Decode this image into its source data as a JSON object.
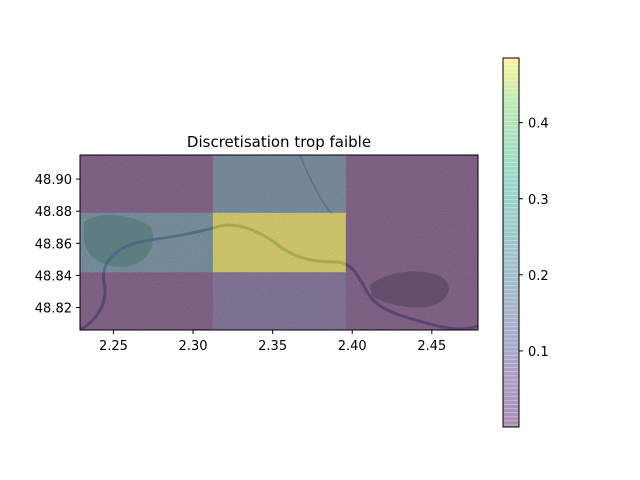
{
  "chart_data": {
    "type": "heatmap",
    "title": "Discretisation trop faible",
    "xlabel": "",
    "ylabel": "",
    "background": "satellite-map",
    "xlim": [
      2.229,
      2.479
    ],
    "ylim": [
      48.806,
      48.915
    ],
    "x_ticks": [
      2.25,
      2.3,
      2.35,
      2.4,
      2.45
    ],
    "x_tick_labels": [
      "2.25",
      "2.30",
      "2.35",
      "2.40",
      "2.45"
    ],
    "y_ticks": [
      48.82,
      48.84,
      48.86,
      48.88,
      48.9
    ],
    "y_tick_labels": [
      "48.82",
      "48.84",
      "48.86",
      "48.88",
      "48.90"
    ],
    "x_edges": [
      2.229,
      2.3125,
      2.396,
      2.479
    ],
    "y_edges": [
      48.806,
      48.842,
      48.879,
      48.915
    ],
    "values": [
      [
        0.02,
        0.08,
        0.02
      ],
      [
        0.19,
        0.48,
        0.02
      ],
      [
        0.02,
        0.17,
        0.02
      ]
    ],
    "colormap": "viridis",
    "cell_alpha": 0.45,
    "colorbar": {
      "range": [
        0.0,
        0.485
      ],
      "ticks": [
        0.1,
        0.2,
        0.3,
        0.4
      ],
      "tick_labels": [
        "0.1",
        "0.2",
        "0.3",
        "0.4"
      ]
    }
  }
}
